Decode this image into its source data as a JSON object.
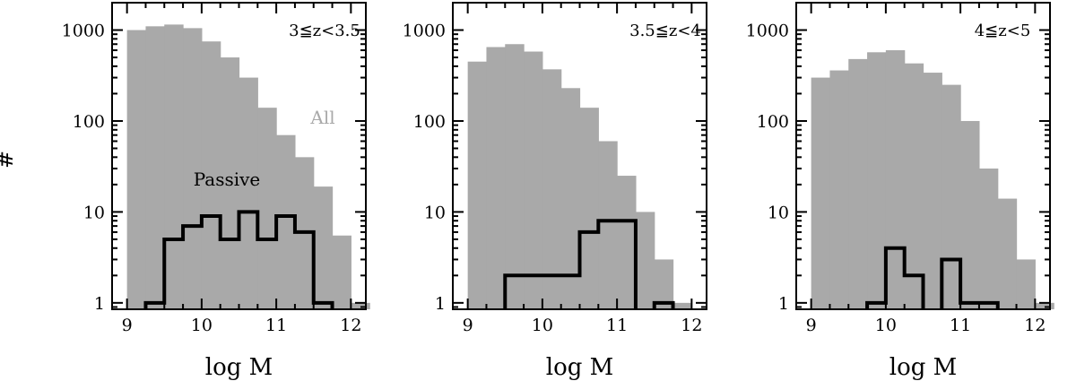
{
  "figure": {
    "ylabel": "#",
    "xlabel": "log M"
  },
  "colors": {
    "all_fill": "#a9a9a9",
    "all_label": "#a9a9a9",
    "passive_line": "#000000",
    "axes": "#000000"
  },
  "chart_data": [
    {
      "type": "bar",
      "panel_label": "3≦z<3.5",
      "xlabel": "log M",
      "ylabel": "#",
      "xlim": [
        8.8,
        12.2
      ],
      "ylim": [
        0.85,
        2000
      ],
      "yscale": "log",
      "xticks": [
        9,
        10,
        11,
        12
      ],
      "yticks": [
        1,
        10,
        100,
        1000
      ],
      "bin_width": 0.25,
      "series": [
        {
          "name": "All",
          "style": "filled-histogram",
          "bins": [
            [
              9.0,
              1000
            ],
            [
              9.25,
              1100
            ],
            [
              9.5,
              1150
            ],
            [
              9.75,
              1050
            ],
            [
              10.0,
              750
            ],
            [
              10.25,
              500
            ],
            [
              10.5,
              300
            ],
            [
              10.75,
              140
            ],
            [
              11.0,
              70
            ],
            [
              11.25,
              40
            ],
            [
              11.5,
              19
            ],
            [
              11.75,
              5.5
            ],
            [
              12.0,
              1
            ]
          ]
        },
        {
          "name": "Passive",
          "style": "step-line",
          "bins": [
            [
              9.25,
              1
            ],
            [
              9.5,
              5
            ],
            [
              9.75,
              7
            ],
            [
              10.0,
              9
            ],
            [
              10.25,
              5
            ],
            [
              10.5,
              10
            ],
            [
              10.75,
              5
            ],
            [
              11.0,
              9
            ],
            [
              11.25,
              6
            ],
            [
              11.5,
              1
            ]
          ]
        }
      ]
    },
    {
      "type": "bar",
      "panel_label": "3.5≦z<4",
      "xlabel": "log M",
      "ylabel": "#",
      "xlim": [
        8.8,
        12.2
      ],
      "ylim": [
        0.85,
        2000
      ],
      "yscale": "log",
      "xticks": [
        9,
        10,
        11,
        12
      ],
      "yticks": [
        1,
        10,
        100,
        1000
      ],
      "bin_width": 0.25,
      "series": [
        {
          "name": "All",
          "style": "filled-histogram",
          "bins": [
            [
              9.0,
              450
            ],
            [
              9.25,
              650
            ],
            [
              9.5,
              700
            ],
            [
              9.75,
              580
            ],
            [
              10.0,
              370
            ],
            [
              10.25,
              230
            ],
            [
              10.5,
              140
            ],
            [
              10.75,
              60
            ],
            [
              11.0,
              25
            ],
            [
              11.25,
              10
            ],
            [
              11.5,
              3
            ],
            [
              11.75,
              1
            ]
          ]
        },
        {
          "name": "Passive",
          "style": "step-line",
          "bins": [
            [
              9.5,
              2
            ],
            [
              9.75,
              2
            ],
            [
              10.0,
              2
            ],
            [
              10.25,
              2
            ],
            [
              10.5,
              6
            ],
            [
              10.75,
              8
            ],
            [
              11.0,
              8
            ],
            [
              11.5,
              1
            ]
          ]
        }
      ]
    },
    {
      "type": "bar",
      "panel_label": "4≦z<5",
      "xlabel": "log M",
      "ylabel": "#",
      "xlim": [
        8.8,
        12.2
      ],
      "ylim": [
        0.85,
        2000
      ],
      "yscale": "log",
      "xticks": [
        9,
        10,
        11,
        12
      ],
      "yticks": [
        1,
        10,
        100,
        1000
      ],
      "bin_width": 0.25,
      "series": [
        {
          "name": "All",
          "style": "filled-histogram",
          "bins": [
            [
              9.0,
              300
            ],
            [
              9.25,
              360
            ],
            [
              9.5,
              480
            ],
            [
              9.75,
              570
            ],
            [
              10.0,
              600
            ],
            [
              10.25,
              430
            ],
            [
              10.5,
              340
            ],
            [
              10.75,
              250
            ],
            [
              11.0,
              100
            ],
            [
              11.25,
              30
            ],
            [
              11.5,
              14
            ],
            [
              11.75,
              3
            ],
            [
              12.0,
              1
            ]
          ]
        },
        {
          "name": "Passive",
          "style": "step-line",
          "bins": [
            [
              9.75,
              1
            ],
            [
              10.0,
              4
            ],
            [
              10.25,
              2
            ],
            [
              10.75,
              3
            ],
            [
              11.0,
              1
            ],
            [
              11.25,
              1
            ]
          ]
        }
      ]
    }
  ],
  "annotations": {
    "all_label": "All",
    "passive_label": "Passive"
  }
}
